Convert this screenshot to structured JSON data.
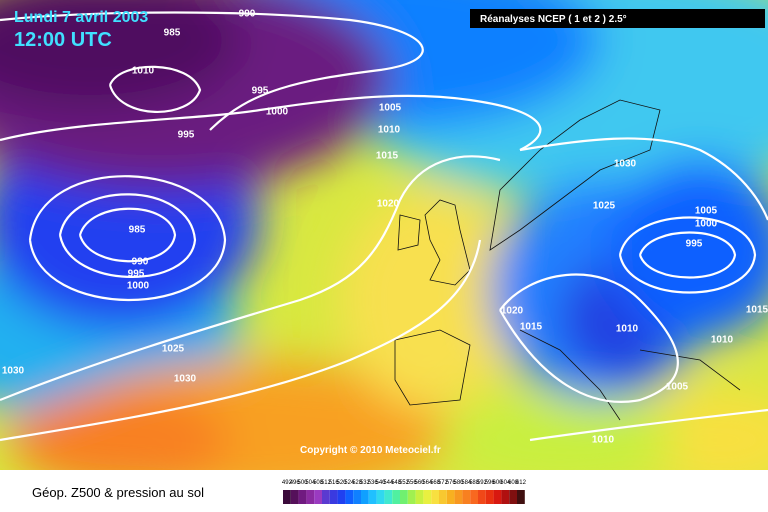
{
  "header": {
    "date": "Lundi 7 avril 2003",
    "time": "12:00 UTC",
    "source": "Réanalyses NCEP ( 1 et 2 ) 2.5°"
  },
  "copyright": "Copyright © 2010 Meteociel.fr",
  "footer": {
    "title": "Géop. Z500 & pression au sol"
  },
  "legend": {
    "values": [
      492,
      496,
      500,
      504,
      508,
      512,
      516,
      520,
      524,
      528,
      532,
      536,
      540,
      544,
      548,
      552,
      556,
      560,
      564,
      568,
      572,
      576,
      580,
      584,
      588,
      592,
      596,
      600,
      604,
      608,
      612
    ],
    "colors": [
      "#3a0a3a",
      "#55105a",
      "#701a80",
      "#8a2aa0",
      "#9a3ac0",
      "#5a3ad0",
      "#3a3ae0",
      "#2040f0",
      "#1060ff",
      "#1080ff",
      "#10a0ff",
      "#20c0ff",
      "#30d8f0",
      "#40e8d0",
      "#50f0a0",
      "#70f070",
      "#a0f050",
      "#c8f040",
      "#e8f040",
      "#f8e040",
      "#f8c830",
      "#f8b020",
      "#f89820",
      "#f88020",
      "#f86820",
      "#f04818",
      "#e83010",
      "#d81810",
      "#b01010",
      "#801010",
      "#401010"
    ]
  },
  "isobars": [
    990,
    985,
    1010,
    995,
    1000,
    995,
    1005,
    1010,
    1015,
    1020,
    985,
    990,
    995,
    1000,
    1025,
    1030,
    1030,
    1030,
    1025,
    1005,
    1000,
    995,
    1020,
    1015,
    1010,
    1010,
    1015,
    1005,
    1010
  ]
}
